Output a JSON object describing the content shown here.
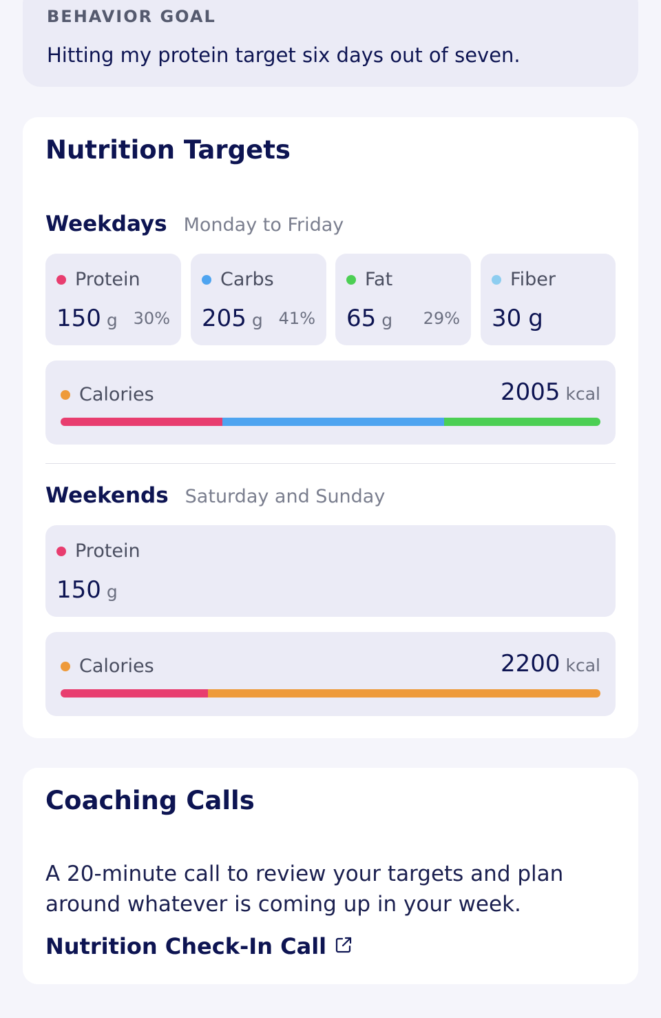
{
  "goal": {
    "label": "BEHAVIOR GOAL",
    "text": "Hitting my protein target six days out of seven."
  },
  "nutrition": {
    "title": "Nutrition Targets",
    "weekdays": {
      "title": "Weekdays",
      "subtitle": "Monday to Friday",
      "macros": [
        {
          "name": "Protein",
          "value": "150",
          "unit": "g",
          "pct": "30%",
          "color": "#e83d6f"
        },
        {
          "name": "Carbs",
          "value": "205",
          "unit": "g",
          "pct": "41%",
          "color": "#4ea4f0"
        },
        {
          "name": "Fat",
          "value": "65",
          "unit": "g",
          "pct": "29%",
          "color": "#4ccf54"
        },
        {
          "name": "Fiber",
          "value": "30",
          "unit": "g",
          "pct": "",
          "color": "#8dcdf0"
        }
      ],
      "calories": {
        "label": "Calories",
        "value": "2005",
        "unit": "kcal",
        "dot_color": "#ee9a3a",
        "segments": [
          {
            "fraction": 0.3,
            "color": "#e83d6f"
          },
          {
            "fraction": 0.41,
            "color": "#4ea4f0"
          },
          {
            "fraction": 0.29,
            "color": "#4ccf54"
          }
        ]
      }
    },
    "weekends": {
      "title": "Weekends",
      "subtitle": "Saturday and Sunday",
      "macros": [
        {
          "name": "Protein",
          "value": "150",
          "unit": "g",
          "color": "#e83d6f"
        }
      ],
      "calories": {
        "label": "Calories",
        "value": "2200",
        "unit": "kcal",
        "dot_color": "#ee9a3a",
        "segments": [
          {
            "fraction": 0.273,
            "color": "#e83d6f"
          },
          {
            "fraction": 0.727,
            "color": "#ee9a3a"
          }
        ]
      }
    }
  },
  "coaching": {
    "title": "Coaching Calls",
    "description": "A 20-minute call to review your targets and plan around whatever is coming up in your week.",
    "link_label": "Nutrition Check-In Call",
    "link_icon": "external-link-icon"
  }
}
